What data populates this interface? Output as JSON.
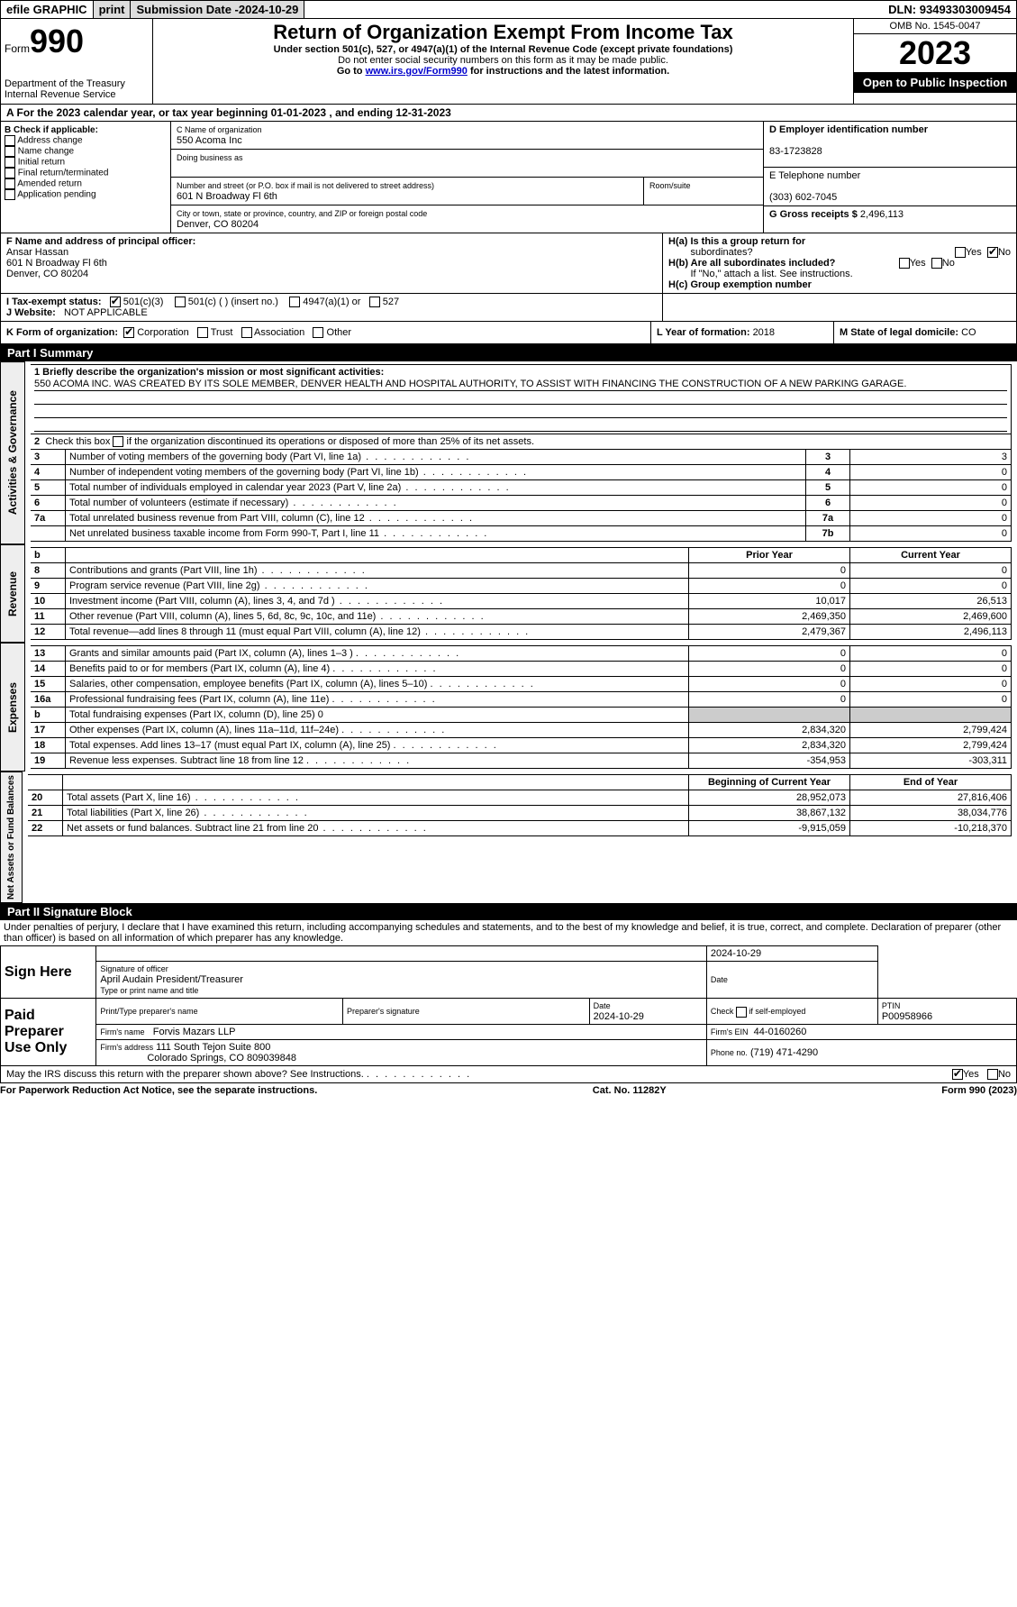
{
  "topbar": {
    "efile": "efile GRAPHIC",
    "print": "print",
    "subm_lbl": "Submission Date - ",
    "subm_date": "2024-10-29",
    "dln_lbl": "DLN: ",
    "dln": "93493303009454"
  },
  "header": {
    "form_lbl": "Form",
    "form_num": "990",
    "dept1": "Department of the Treasury",
    "dept2": "Internal Revenue Service",
    "title": "Return of Organization Exempt From Income Tax",
    "sub1": "Under section 501(c), 527, or 4947(a)(1) of the Internal Revenue Code (except private foundations)",
    "sub2": "Do not enter social security numbers on this form as it may be made public.",
    "sub3_pre": "Go to ",
    "sub3_link": "www.irs.gov/Form990",
    "sub3_post": " for instructions and the latest information.",
    "omb": "OMB No. 1545-0047",
    "year": "2023",
    "open": "Open to Public Inspection"
  },
  "sectionA": {
    "text_pre": "A For the 2023 calendar year, or tax year beginning ",
    "begin": "01-01-2023",
    "mid": " , and ending ",
    "end": "12-31-2023"
  },
  "boxB": {
    "hdr": "B Check if applicable:",
    "opts": [
      "Address change",
      "Name change",
      "Initial return",
      "Final return/terminated",
      "Amended return",
      "Application pending"
    ]
  },
  "boxC": {
    "name_lbl": "C Name of organization",
    "name": "550 Acoma Inc",
    "dba_lbl": "Doing business as",
    "addr_lbl": "Number and street (or P.O. box if mail is not delivered to street address)",
    "addr": "601 N Broadway Fl 6th",
    "room_lbl": "Room/suite",
    "city_lbl": "City or town, state or province, country, and ZIP or foreign postal code",
    "city": "Denver, CO  80204"
  },
  "boxD": {
    "lbl": "D Employer identification number",
    "val": "83-1723828"
  },
  "boxE": {
    "lbl": "E Telephone number",
    "val": "(303) 602-7045"
  },
  "boxG": {
    "lbl": "G Gross receipts $ ",
    "val": "2,496,113"
  },
  "boxF": {
    "lbl": "F Name and address of principal officer:",
    "name": "Ansar Hassan",
    "addr1": "601 N Broadway Fl 6th",
    "addr2": "Denver, CO  80204"
  },
  "boxH": {
    "a1": "H(a)  Is this a group return for",
    "a2": "subordinates?",
    "b1": "H(b)  Are all subordinates included?",
    "b2": "If \"No,\" attach a list. See instructions.",
    "c": "H(c)  Group exemption number",
    "yes": "Yes",
    "no": "No"
  },
  "boxI": {
    "lbl": "I    Tax-exempt status:",
    "o1": "501(c)(3)",
    "o2": "501(c) (  ) (insert no.)",
    "o3": "4947(a)(1) or",
    "o4": "527"
  },
  "boxJ": {
    "lbl": "J    Website:",
    "val": "NOT APPLICABLE"
  },
  "boxK": {
    "lbl": "K Form of organization:",
    "o1": "Corporation",
    "o2": "Trust",
    "o3": "Association",
    "o4": "Other"
  },
  "boxL": {
    "lbl": "L Year of formation: ",
    "val": "2018"
  },
  "boxM": {
    "lbl": "M State of legal domicile: ",
    "val": "CO"
  },
  "part1": {
    "hdr": "Part I      Summary"
  },
  "summary": {
    "l1_lbl": "1   Briefly describe the organization's mission or most significant activities:",
    "l1_txt": "550 ACOMA INC. WAS CREATED BY ITS SOLE MEMBER, DENVER HEALTH AND HOSPITAL AUTHORITY, TO ASSIST WITH FINANCING THE CONSTRUCTION OF A NEW PARKING GARAGE.",
    "l2": "2   Check this box      if the organization discontinued its operations or disposed of more than 25% of its net assets.",
    "rows_ag": [
      {
        "n": "3",
        "t": "Number of voting members of the governing body (Part VI, line 1a)",
        "k": "3",
        "v": "3"
      },
      {
        "n": "4",
        "t": "Number of independent voting members of the governing body (Part VI, line 1b)",
        "k": "4",
        "v": "0"
      },
      {
        "n": "5",
        "t": "Total number of individuals employed in calendar year 2023 (Part V, line 2a)",
        "k": "5",
        "v": "0"
      },
      {
        "n": "6",
        "t": "Total number of volunteers (estimate if necessary)",
        "k": "6",
        "v": "0"
      },
      {
        "n": "7a",
        "t": "Total unrelated business revenue from Part VIII, column (C), line 12",
        "k": "7a",
        "v": "0"
      },
      {
        "n": "",
        "t": "Net unrelated business taxable income from Form 990-T, Part I, line 11",
        "k": "7b",
        "v": "0"
      }
    ],
    "col_b": "b",
    "prior": "Prior Year",
    "current": "Current Year",
    "rows_rev": [
      {
        "n": "8",
        "t": "Contributions and grants (Part VIII, line 1h)",
        "p": "0",
        "c": "0"
      },
      {
        "n": "9",
        "t": "Program service revenue (Part VIII, line 2g)",
        "p": "0",
        "c": "0"
      },
      {
        "n": "10",
        "t": "Investment income (Part VIII, column (A), lines 3, 4, and 7d )",
        "p": "10,017",
        "c": "26,513"
      },
      {
        "n": "11",
        "t": "Other revenue (Part VIII, column (A), lines 5, 6d, 8c, 9c, 10c, and 11e)",
        "p": "2,469,350",
        "c": "2,469,600"
      },
      {
        "n": "12",
        "t": "Total revenue—add lines 8 through 11 (must equal Part VIII, column (A), line 12)",
        "p": "2,479,367",
        "c": "2,496,113"
      }
    ],
    "rows_exp": [
      {
        "n": "13",
        "t": "Grants and similar amounts paid (Part IX, column (A), lines 1–3 )",
        "p": "0",
        "c": "0"
      },
      {
        "n": "14",
        "t": "Benefits paid to or for members (Part IX, column (A), line 4)",
        "p": "0",
        "c": "0"
      },
      {
        "n": "15",
        "t": "Salaries, other compensation, employee benefits (Part IX, column (A), lines 5–10)",
        "p": "0",
        "c": "0"
      },
      {
        "n": "16a",
        "t": "Professional fundraising fees (Part IX, column (A), line 11e)",
        "p": "0",
        "c": "0"
      },
      {
        "n": "b",
        "t": "Total fundraising expenses (Part IX, column (D), line 25) 0",
        "p": "",
        "c": "",
        "shade": true
      },
      {
        "n": "17",
        "t": "Other expenses (Part IX, column (A), lines 11a–11d, 11f–24e)",
        "p": "2,834,320",
        "c": "2,799,424"
      },
      {
        "n": "18",
        "t": "Total expenses. Add lines 13–17 (must equal Part IX, column (A), line 25)",
        "p": "2,834,320",
        "c": "2,799,424"
      },
      {
        "n": "19",
        "t": "Revenue less expenses. Subtract line 18 from line 12",
        "p": "-354,953",
        "c": "-303,311"
      }
    ],
    "beg": "Beginning of Current Year",
    "end": "End of Year",
    "rows_na": [
      {
        "n": "20",
        "t": "Total assets (Part X, line 16)",
        "p": "28,952,073",
        "c": "27,816,406"
      },
      {
        "n": "21",
        "t": "Total liabilities (Part X, line 26)",
        "p": "38,867,132",
        "c": "38,034,776"
      },
      {
        "n": "22",
        "t": "Net assets or fund balances. Subtract line 21 from line 20",
        "p": "-9,915,059",
        "c": "-10,218,370"
      }
    ],
    "side_ag": "Activities & Governance",
    "side_rev": "Revenue",
    "side_exp": "Expenses",
    "side_na": "Net Assets or Fund Balances"
  },
  "part2": {
    "hdr": "Part II     Signature Block"
  },
  "sig": {
    "decl": "Under penalties of perjury, I declare that I have examined this return, including accompanying schedules and statements, and to the best of my knowledge and belief, it is true, correct, and complete. Declaration of preparer (other than officer) is based on all information of which preparer has any knowledge.",
    "sign_here": "Sign Here",
    "sig_officer": "Signature of officer",
    "date": "Date",
    "officer": "April Audain  President/Treasurer",
    "type_name": "Type or print name and title",
    "date_val": "2024-10-29",
    "paid": "Paid Preparer Use Only",
    "prep_name_lbl": "Print/Type preparer's name",
    "prep_sig_lbl": "Preparer's signature",
    "prep_date": "2024-10-29",
    "check_self": "Check        if self-employed",
    "ptin_lbl": "PTIN",
    "ptin": "P00958966",
    "firm_name_lbl": "Firm's name",
    "firm_name": "Forvis Mazars LLP",
    "firm_ein_lbl": "Firm's EIN",
    "firm_ein": "44-0160260",
    "firm_addr_lbl": "Firm's address",
    "firm_addr1": "111 South Tejon Suite 800",
    "firm_addr2": "Colorado Springs, CO  809039848",
    "phone_lbl": "Phone no.",
    "phone": "(719) 471-4290",
    "discuss": "May the IRS discuss this return with the preparer shown above? See Instructions.",
    "yes": "Yes",
    "no": "No"
  },
  "footer": {
    "left": "For Paperwork Reduction Act Notice, see the separate instructions.",
    "mid": "Cat. No. 11282Y",
    "right": "Form 990 (2023)"
  }
}
